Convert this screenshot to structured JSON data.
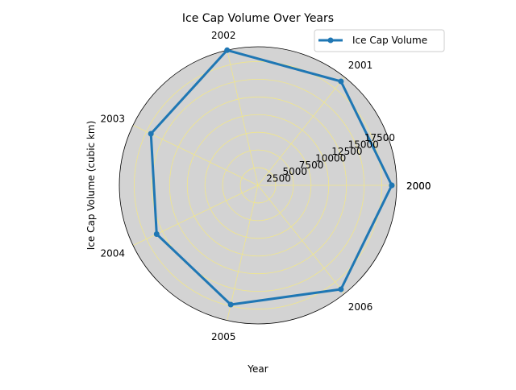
{
  "chart_data": {
    "type": "radar",
    "title": "Ice Cap Volume Over Years",
    "xlabel": "Year",
    "ylabel": "Ice Cap Volume (cubic km)",
    "categories": [
      "2000",
      "2001",
      "2002",
      "2003",
      "2004",
      "2005",
      "2006"
    ],
    "closing_label": "2000",
    "series": [
      {
        "name": "Ice Cap Volume",
        "color": "#1f77b4",
        "values": [
          18900,
          18800,
          19600,
          16800,
          15900,
          17300,
          18800
        ]
      }
    ],
    "radial_ticks": [
      2500,
      5000,
      7500,
      10000,
      12500,
      15000,
      17500
    ],
    "rlim": [
      0,
      19600
    ],
    "grid": true,
    "grid_color": "#f0e68c",
    "axes_background": "#d3d3d3",
    "legend_position": "top-right"
  }
}
